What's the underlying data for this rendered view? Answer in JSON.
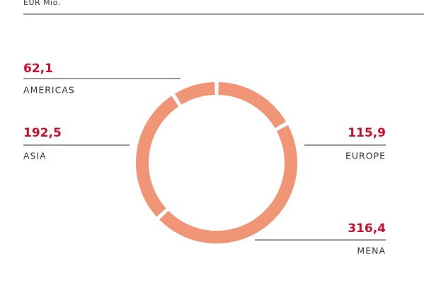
{
  "chart_data": {
    "type": "donut",
    "unit_label": "EUR Mio.",
    "categories": [
      "EUROPE",
      "MENA",
      "ASIA",
      "AMERICAS"
    ],
    "values": [
      115.9,
      316.4,
      192.5,
      62.1
    ],
    "value_labels": [
      "115,9",
      "316,4",
      "192,5",
      "62,1"
    ],
    "color": "#f09676"
  }
}
